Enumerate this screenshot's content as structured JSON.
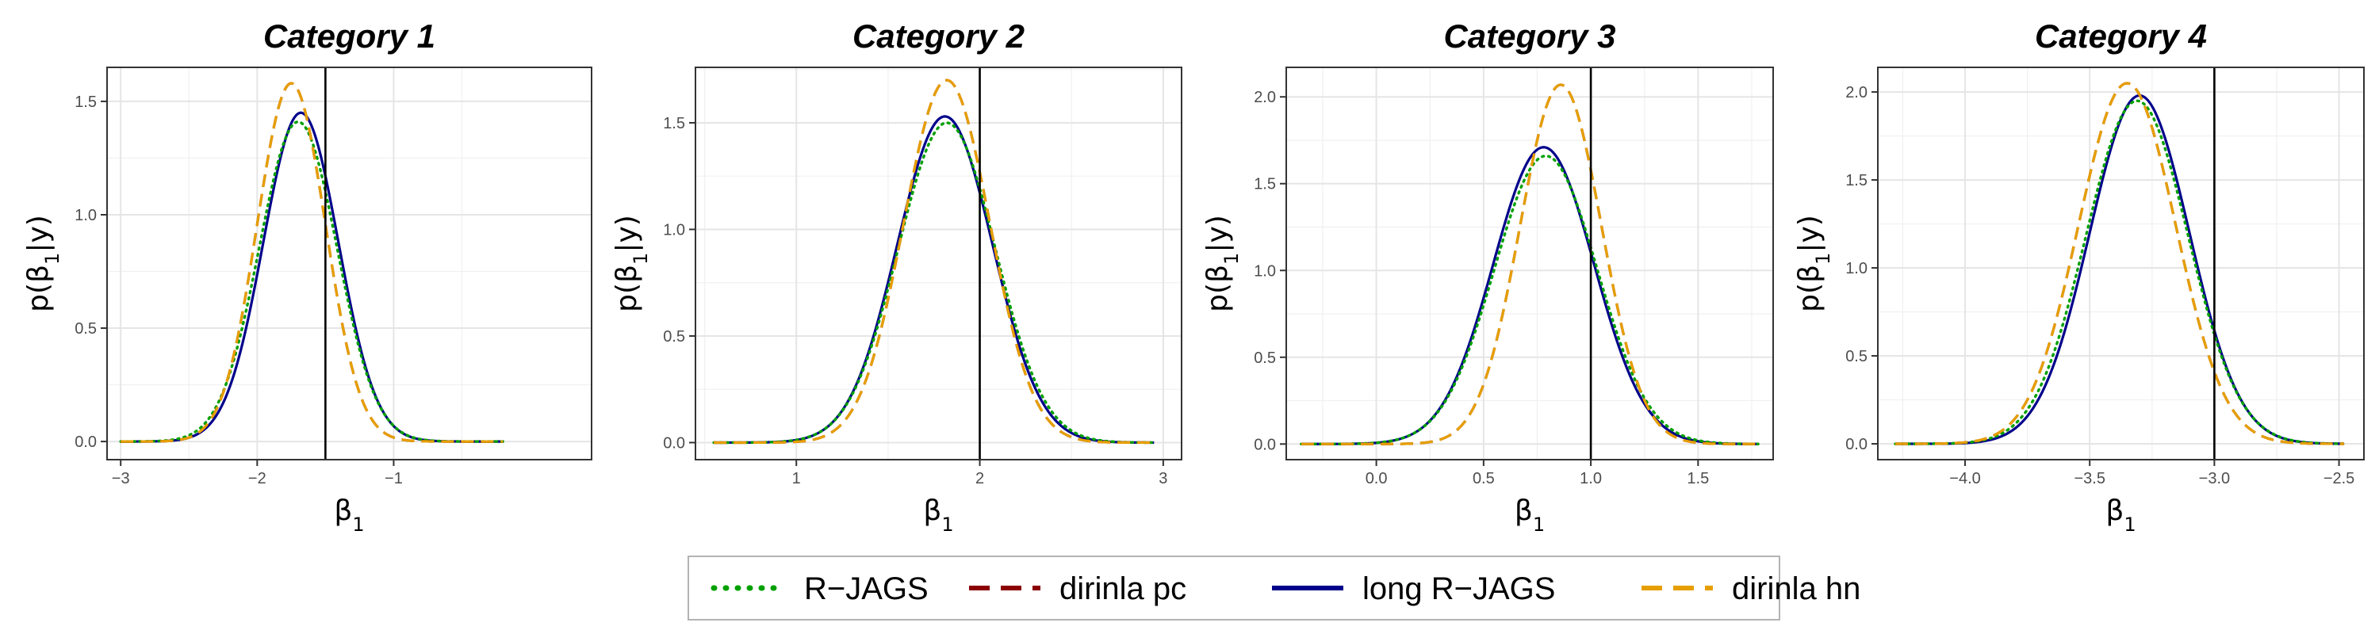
{
  "chart_data": {
    "type": "line",
    "xlabel": "β₁",
    "ylabel": "p(β₁|y)",
    "legend": {
      "position": "bottom",
      "entries": [
        {
          "name": "R−JAGS",
          "color": "#00a000",
          "style": "dotted"
        },
        {
          "name": "dirinla pc",
          "color": "#8b0000",
          "style": "dashed"
        },
        {
          "name": "long R−JAGS",
          "color": "#00008b",
          "style": "solid"
        },
        {
          "name": "dirinla hn",
          "color": "#e69f00",
          "style": "dashed"
        }
      ]
    },
    "panels": [
      {
        "title": "Category 1",
        "xlim": [
          -3.1,
          0.45
        ],
        "ylim": [
          -0.08,
          1.65
        ],
        "xticks": [
          {
            "v": -3,
            "l": "−3"
          },
          {
            "v": -2,
            "l": "−2"
          },
          {
            "v": -1,
            "l": "−1"
          }
        ],
        "yticks": [
          {
            "v": 0,
            "l": "0.0"
          },
          {
            "v": 0.5,
            "l": "0.5"
          },
          {
            "v": 1,
            "l": "1.0"
          },
          {
            "v": 1.5,
            "l": "1.5"
          }
        ],
        "vline": -1.5,
        "x_range": [
          -3.0,
          -0.2
        ],
        "series": [
          {
            "name": "R−JAGS",
            "mean": -1.7,
            "sd": 0.285,
            "peak": 1.41
          },
          {
            "name": "dirinla pc",
            "mean": -1.75,
            "sd": 0.25,
            "peak": 1.58
          },
          {
            "name": "long R−JAGS",
            "mean": -1.68,
            "sd": 0.275,
            "peak": 1.45
          },
          {
            "name": "dirinla hn",
            "mean": -1.75,
            "sd": 0.25,
            "peak": 1.58
          }
        ]
      },
      {
        "title": "Category 2",
        "xlim": [
          0.45,
          3.1
        ],
        "ylim": [
          -0.08,
          1.76
        ],
        "xticks": [
          {
            "v": 1,
            "l": "1"
          },
          {
            "v": 2,
            "l": "2"
          },
          {
            "v": 3,
            "l": "3"
          }
        ],
        "yticks": [
          {
            "v": 0,
            "l": "0.0"
          },
          {
            "v": 0.5,
            "l": "0.5"
          },
          {
            "v": 1,
            "l": "1.0"
          },
          {
            "v": 1.5,
            "l": "1.5"
          }
        ],
        "vline": 2.0,
        "x_range": [
          0.55,
          2.95
        ],
        "series": [
          {
            "name": "R−JAGS",
            "mean": 1.82,
            "sd": 0.265,
            "peak": 1.5
          },
          {
            "name": "dirinla pc",
            "mean": 1.82,
            "sd": 0.235,
            "peak": 1.7
          },
          {
            "name": "long R−JAGS",
            "mean": 1.81,
            "sd": 0.26,
            "peak": 1.53
          },
          {
            "name": "dirinla hn",
            "mean": 1.82,
            "sd": 0.235,
            "peak": 1.7
          }
        ]
      },
      {
        "title": "Category 3",
        "xlim": [
          -0.42,
          1.85
        ],
        "ylim": [
          -0.09,
          2.17
        ],
        "xticks": [
          {
            "v": 0,
            "l": "0.0"
          },
          {
            "v": 0.5,
            "l": "0.5"
          },
          {
            "v": 1,
            "l": "1.0"
          },
          {
            "v": 1.5,
            "l": "1.5"
          }
        ],
        "yticks": [
          {
            "v": 0,
            "l": "0.0"
          },
          {
            "v": 0.5,
            "l": "0.5"
          },
          {
            "v": 1,
            "l": "1.0"
          },
          {
            "v": 1.5,
            "l": "1.5"
          },
          {
            "v": 2,
            "l": "2.0"
          }
        ],
        "vline": 1.0,
        "x_range": [
          -0.35,
          1.78
        ],
        "series": [
          {
            "name": "R−JAGS",
            "mean": 0.79,
            "sd": 0.24,
            "peak": 1.66
          },
          {
            "name": "dirinla pc",
            "mean": 0.86,
            "sd": 0.19,
            "peak": 2.07
          },
          {
            "name": "long R−JAGS",
            "mean": 0.78,
            "sd": 0.235,
            "peak": 1.71
          },
          {
            "name": "dirinla hn",
            "mean": 0.86,
            "sd": 0.19,
            "peak": 2.07
          }
        ]
      },
      {
        "title": "Category 4",
        "xlim": [
          -4.35,
          -2.4
        ],
        "ylim": [
          -0.09,
          2.14
        ],
        "xticks": [
          {
            "v": -4,
            "l": "−4.0"
          },
          {
            "v": -3.5,
            "l": "−3.5"
          },
          {
            "v": -3,
            "l": "−3.0"
          },
          {
            "v": -2.5,
            "l": "−2.5"
          }
        ],
        "yticks": [
          {
            "v": 0,
            "l": "0.0"
          },
          {
            "v": 0.5,
            "l": "0.5"
          },
          {
            "v": 1,
            "l": "1.0"
          },
          {
            "v": 1.5,
            "l": "1.5"
          },
          {
            "v": 2,
            "l": "2.0"
          }
        ],
        "vline": -3.0,
        "x_range": [
          -4.28,
          -2.48
        ],
        "series": [
          {
            "name": "R−JAGS",
            "mean": -3.31,
            "sd": 0.205,
            "peak": 1.95
          },
          {
            "name": "dirinla pc",
            "mean": -3.35,
            "sd": 0.195,
            "peak": 2.05
          },
          {
            "name": "long R−JAGS",
            "mean": -3.3,
            "sd": 0.2,
            "peak": 1.98
          },
          {
            "name": "dirinla hn",
            "mean": -3.35,
            "sd": 0.195,
            "peak": 2.05
          }
        ]
      }
    ]
  }
}
